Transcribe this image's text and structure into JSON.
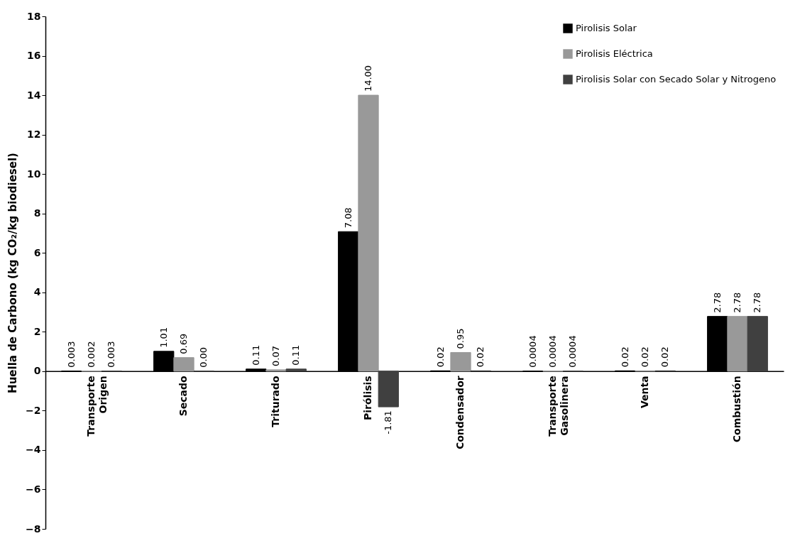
{
  "chart_data": {
    "type": "bar",
    "ylabel": "Huella de Carbono (kg CO₂/kg biodiesel)",
    "categories": [
      "Transporte Origen",
      "Secado",
      "Triturado",
      "Pirólisis",
      "Condensador",
      "Transporte Gasolinera",
      "Venta",
      "Combustión"
    ],
    "series": [
      {
        "name": "Pirolisis Solar",
        "color": "#000000",
        "values": [
          0.003,
          1.01,
          0.11,
          7.08,
          0.02,
          0.0004,
          0.02,
          2.78
        ],
        "value_labels": [
          "0.003",
          "1.01",
          "0.11",
          "7.08",
          "0.02",
          "0.0004",
          "0.02",
          "2.78"
        ]
      },
      {
        "name": "Pirolisis Eléctrica",
        "color": "#999999",
        "values": [
          0.002,
          0.69,
          0.07,
          14.0,
          0.95,
          0.0004,
          0.02,
          2.78
        ],
        "value_labels": [
          "0.002",
          "0.69",
          "0.07",
          "14.00",
          "0.95",
          "0.0004",
          "0.02",
          "2.78"
        ]
      },
      {
        "name": "Pirolisis Solar con Secado Solar y Nitrogeno",
        "color": "#404040",
        "values": [
          0.003,
          0.0,
          0.11,
          -1.81,
          0.02,
          0.0004,
          0.02,
          2.78
        ],
        "value_labels": [
          "0.003",
          "0.00",
          "0.11",
          "-1.81",
          "0.02",
          "0.0004",
          "0.02",
          "2.78"
        ]
      }
    ],
    "ylim": [
      -8,
      18
    ],
    "yticks": [
      -8,
      -6,
      -4,
      -2,
      0,
      2,
      4,
      6,
      8,
      10,
      12,
      14,
      16,
      18
    ],
    "grid": false,
    "legend": "top right"
  }
}
